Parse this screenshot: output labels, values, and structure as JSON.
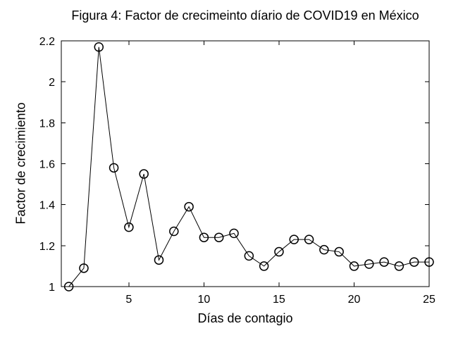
{
  "figure": {
    "background": "#ffffff",
    "foreground": "#000000"
  },
  "chart_data": {
    "type": "line",
    "title": "Figura 4: Factor de crecimeinto díario de COVID19 en México",
    "xlabel": "Días de contagio",
    "ylabel": "Factor de crecimiento",
    "x": [
      1,
      2,
      3,
      4,
      5,
      6,
      7,
      8,
      9,
      10,
      11,
      12,
      13,
      14,
      15,
      16,
      17,
      18,
      19,
      20,
      21,
      22,
      23,
      24,
      25
    ],
    "values": [
      1.0,
      1.09,
      2.17,
      1.58,
      1.29,
      1.55,
      1.13,
      1.27,
      1.39,
      1.24,
      1.24,
      1.26,
      1.15,
      1.1,
      1.17,
      1.23,
      1.23,
      1.18,
      1.17,
      1.1,
      1.11,
      1.12,
      1.1,
      1.12,
      1.12
    ],
    "xlim": [
      0.5,
      25
    ],
    "ylim": [
      1,
      2.2
    ],
    "xticks": [
      5,
      10,
      15,
      20,
      25
    ],
    "xticklabels": [
      "5",
      "10",
      "15",
      "20",
      "25"
    ],
    "yticks": [
      1,
      1.2,
      1.4,
      1.6,
      1.8,
      2,
      2.2
    ],
    "yticklabels": [
      "1",
      "1.2",
      "1.4",
      "1.6",
      "1.8",
      "2",
      "2.2"
    ],
    "grid": false,
    "legend": null,
    "box": true,
    "tick_direction": "in",
    "marker": "open-circle",
    "line_color": "#000000",
    "marker_color": "#000000"
  }
}
